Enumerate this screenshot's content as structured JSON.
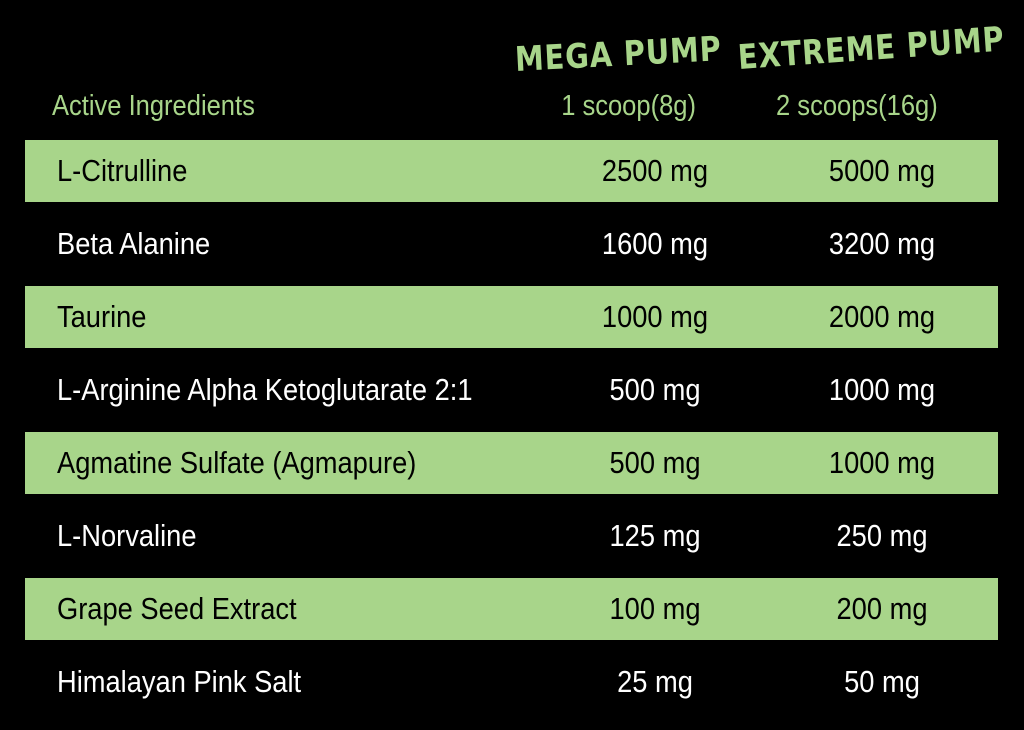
{
  "header": {
    "ingredients_label": "Active Ingredients",
    "products": [
      {
        "name": "MEGA PUMP",
        "serving": "1 scoop(8g)"
      },
      {
        "name": "EXTREME PUMP",
        "serving": "2 scoops(16g)"
      }
    ]
  },
  "colors": {
    "accent": "#a8d58a",
    "background": "#000000"
  },
  "rows": [
    {
      "ingredient": "L-Citrulline",
      "mega": "2500 mg",
      "extreme": "5000 mg"
    },
    {
      "ingredient": "Beta Alanine",
      "mega": "1600 mg",
      "extreme": "3200 mg"
    },
    {
      "ingredient": "Taurine",
      "mega": "1000 mg",
      "extreme": "2000 mg"
    },
    {
      "ingredient": "L-Arginine Alpha Ketoglutarate 2:1",
      "mega": "500 mg",
      "extreme": "1000 mg"
    },
    {
      "ingredient": "Agmatine Sulfate (Agmapure)",
      "mega": "500 mg",
      "extreme": "1000 mg"
    },
    {
      "ingredient": "L-Norvaline",
      "mega": "125 mg",
      "extreme": "250 mg"
    },
    {
      "ingredient": "Grape Seed Extract",
      "mega": "100 mg",
      "extreme": "200 mg"
    },
    {
      "ingredient": "Himalayan Pink Salt",
      "mega": "25 mg",
      "extreme": "50 mg"
    }
  ]
}
